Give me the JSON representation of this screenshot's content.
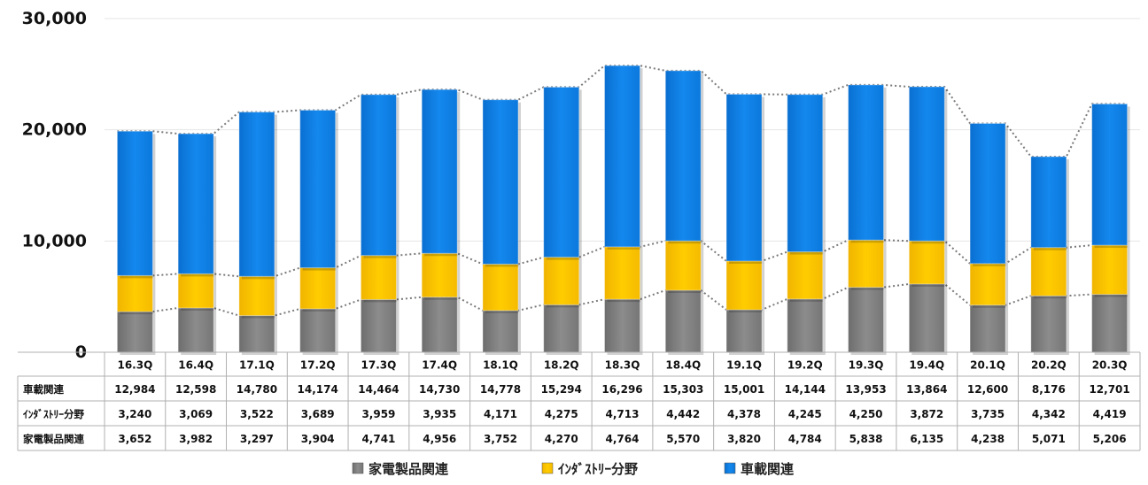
{
  "chart_data": {
    "type": "bar",
    "stacked": true,
    "categories": [
      "16.3Q",
      "16.4Q",
      "17.1Q",
      "17.2Q",
      "17.3Q",
      "17.4Q",
      "18.1Q",
      "18.2Q",
      "18.3Q",
      "18.4Q",
      "19.1Q",
      "19.2Q",
      "19.3Q",
      "19.4Q",
      "20.1Q",
      "20.2Q",
      "20.3Q"
    ],
    "series": [
      {
        "name": "家電製品関連",
        "color": "#808080",
        "values": [
          3652,
          3982,
          3297,
          3904,
          4741,
          4956,
          3752,
          4270,
          4764,
          5570,
          3820,
          4784,
          5838,
          6135,
          4238,
          5071,
          5206
        ]
      },
      {
        "name": "ｲﾝﾀﾞｽﾄﾘｰ分野",
        "color": "#ffc000",
        "values": [
          3240,
          3069,
          3522,
          3689,
          3959,
          3935,
          4171,
          4275,
          4713,
          4442,
          4378,
          4245,
          4250,
          3872,
          3735,
          4342,
          4419
        ]
      },
      {
        "name": "車載関連",
        "color": "#0a7ee3",
        "values": [
          12984,
          12598,
          14780,
          14174,
          14464,
          14730,
          14778,
          15294,
          16296,
          15303,
          15001,
          14144,
          13953,
          13864,
          12600,
          8176,
          12701
        ]
      }
    ],
    "table_rows": [
      {
        "label": "車載関連",
        "series": 2
      },
      {
        "label": "ｲﾝﾀﾞｽﾄﾘｰ分野",
        "series": 1
      },
      {
        "label": "家電製品関連",
        "series": 0
      }
    ],
    "ylim": [
      0,
      30000
    ],
    "yticks": [
      0,
      10000,
      20000,
      30000
    ],
    "ytick_labels": [
      "0",
      "10,000",
      "20,000",
      "30,000"
    ],
    "grid": true,
    "legend_position": "bottom"
  }
}
